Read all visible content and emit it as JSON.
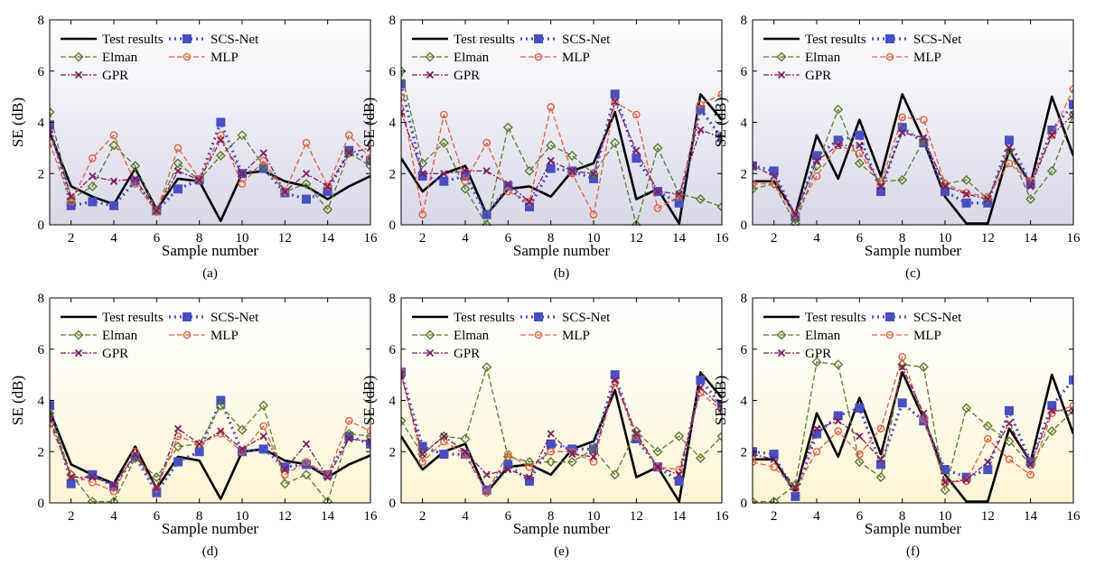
{
  "figure": {
    "xlabel": "Sample number",
    "ylabel": "SE (dB)",
    "legend": [
      "Test results",
      "SCS-Net",
      "Elman",
      "MLP",
      "GPR"
    ],
    "colors": {
      "test": "#000000",
      "scs": "#4a4fc0",
      "elman": "#5a7a2a",
      "mlp": "#e06040",
      "gpr": "#7b1f5e",
      "bg_top_row": "#e6e6f0",
      "bg_bottom_row": "#fdf8e4"
    }
  },
  "chart_data": [
    {
      "type": "line",
      "caption": "(a)",
      "xlabel": "Sample number",
      "ylabel": "SE (dB)",
      "xlim": [
        1,
        16
      ],
      "ylim": [
        0,
        8
      ],
      "xticks": [
        2,
        4,
        6,
        8,
        10,
        12,
        14,
        16
      ],
      "yticks": [
        0,
        2,
        4,
        6,
        8
      ],
      "x": [
        1,
        2,
        3,
        4,
        5,
        6,
        7,
        8,
        9,
        10,
        11,
        12,
        13,
        14,
        15,
        16
      ],
      "legend_position": "top-left",
      "grid": false,
      "background": "gradient-lavender",
      "series": [
        {
          "name": "Test results",
          "key": "test",
          "values": [
            3.6,
            1.5,
            1.1,
            0.8,
            2.2,
            0.6,
            1.8,
            1.7,
            0.15,
            2.0,
            2.1,
            1.7,
            1.5,
            1.0,
            1.5,
            1.9
          ]
        },
        {
          "name": "SCS-Net",
          "key": "scs",
          "values": [
            3.9,
            0.75,
            0.9,
            0.75,
            1.7,
            0.55,
            1.4,
            1.75,
            4.0,
            2.0,
            2.2,
            1.25,
            1.0,
            1.3,
            2.9,
            2.5
          ]
        },
        {
          "name": "Elman",
          "key": "elman",
          "values": [
            4.4,
            1.0,
            1.5,
            3.1,
            2.3,
            0.55,
            2.4,
            1.75,
            2.7,
            3.5,
            2.3,
            1.3,
            1.6,
            0.6,
            2.8,
            2.3
          ]
        },
        {
          "name": "MLP",
          "key": "mlp",
          "values": [
            3.2,
            0.9,
            2.6,
            3.5,
            1.6,
            0.5,
            3.0,
            1.8,
            3.5,
            1.6,
            2.5,
            1.3,
            3.2,
            1.5,
            3.5,
            2.6
          ]
        },
        {
          "name": "GPR",
          "key": "gpr",
          "values": [
            3.7,
            1.1,
            1.9,
            1.7,
            1.8,
            0.55,
            2.1,
            1.75,
            3.3,
            2.0,
            2.8,
            1.3,
            2.0,
            1.5,
            2.8,
            3.0
          ]
        }
      ]
    },
    {
      "type": "line",
      "caption": "(b)",
      "xlabel": "Sample number",
      "ylabel": "SE (dB)",
      "xlim": [
        1,
        16
      ],
      "ylim": [
        0,
        8
      ],
      "xticks": [
        2,
        4,
        6,
        8,
        10,
        12,
        14,
        16
      ],
      "yticks": [
        0,
        2,
        4,
        6,
        8
      ],
      "x": [
        1,
        2,
        3,
        4,
        5,
        6,
        7,
        8,
        9,
        10,
        11,
        12,
        13,
        14,
        15,
        16
      ],
      "legend_position": "top-left",
      "grid": false,
      "background": "gradient-lavender",
      "series": [
        {
          "name": "Test results",
          "key": "test",
          "values": [
            2.6,
            1.3,
            2.0,
            2.3,
            0.4,
            1.4,
            1.5,
            1.1,
            2.1,
            2.4,
            4.4,
            1.0,
            1.4,
            0.05,
            5.1,
            4.1
          ]
        },
        {
          "name": "SCS-Net",
          "key": "scs",
          "values": [
            5.5,
            1.9,
            1.7,
            1.9,
            0.4,
            1.5,
            0.7,
            2.2,
            2.1,
            1.8,
            5.1,
            2.6,
            1.3,
            0.85,
            4.5,
            3.4
          ]
        },
        {
          "name": "Elman",
          "key": "elman",
          "values": [
            6.0,
            2.4,
            3.2,
            1.4,
            0.0,
            3.8,
            2.1,
            3.1,
            2.7,
            2.0,
            3.2,
            0.0,
            3.0,
            1.2,
            1.0,
            0.7
          ]
        },
        {
          "name": "MLP",
          "key": "mlp",
          "values": [
            5.0,
            0.4,
            4.3,
            1.7,
            3.2,
            1.3,
            0.9,
            4.6,
            2.0,
            0.4,
            4.8,
            4.3,
            0.65,
            1.1,
            4.7,
            5.1
          ]
        },
        {
          "name": "GPR",
          "key": "gpr",
          "values": [
            4.4,
            2.0,
            2.0,
            2.1,
            2.1,
            1.6,
            0.9,
            2.5,
            2.1,
            2.0,
            4.8,
            2.9,
            1.3,
            1.2,
            3.7,
            3.4
          ]
        }
      ]
    },
    {
      "type": "line",
      "caption": "(c)",
      "xlabel": "Sample number",
      "ylabel": "SE (dB)",
      "xlim": [
        1,
        16
      ],
      "ylim": [
        0,
        8
      ],
      "xticks": [
        2,
        4,
        6,
        8,
        10,
        12,
        14,
        16
      ],
      "yticks": [
        0,
        2,
        4,
        6,
        8
      ],
      "x": [
        1,
        2,
        3,
        4,
        5,
        6,
        7,
        8,
        9,
        10,
        11,
        12,
        13,
        14,
        15,
        16
      ],
      "legend_position": "top-left",
      "grid": false,
      "background": "gradient-lavender",
      "series": [
        {
          "name": "Test results",
          "key": "test",
          "values": [
            1.7,
            1.7,
            0.4,
            3.5,
            1.8,
            4.1,
            1.9,
            5.1,
            3.3,
            1.1,
            0.05,
            0.05,
            2.9,
            1.6,
            5.0,
            2.7
          ]
        },
        {
          "name": "SCS-Net",
          "key": "scs",
          "values": [
            2.3,
            2.1,
            0.3,
            2.7,
            3.3,
            3.5,
            1.3,
            3.8,
            3.2,
            1.3,
            0.85,
            0.85,
            3.3,
            1.6,
            3.7,
            4.7
          ]
        },
        {
          "name": "Elman",
          "key": "elman",
          "values": [
            1.4,
            1.6,
            0.05,
            2.3,
            4.5,
            2.4,
            1.7,
            1.75,
            3.3,
            1.6,
            1.75,
            1.0,
            2.9,
            1.0,
            2.1,
            4.3
          ]
        },
        {
          "name": "MLP",
          "key": "mlp",
          "values": [
            1.6,
            1.6,
            0.4,
            1.9,
            3.1,
            2.8,
            1.6,
            4.2,
            4.1,
            1.6,
            1.25,
            1.1,
            2.4,
            1.7,
            3.5,
            5.3
          ]
        },
        {
          "name": "GPR",
          "key": "gpr",
          "values": [
            2.3,
            1.9,
            0.4,
            2.5,
            3.1,
            3.1,
            1.5,
            3.6,
            3.4,
            1.5,
            1.2,
            1.0,
            3.0,
            1.5,
            3.5,
            4.3
          ]
        }
      ]
    },
    {
      "type": "line",
      "caption": "(d)",
      "xlabel": "Sample number",
      "ylabel": "SE (dB)",
      "xlim": [
        1,
        16
      ],
      "ylim": [
        0,
        8
      ],
      "xticks": [
        2,
        4,
        6,
        8,
        10,
        12,
        14,
        16
      ],
      "yticks": [
        0,
        2,
        4,
        6,
        8
      ],
      "x": [
        1,
        2,
        3,
        4,
        5,
        6,
        7,
        8,
        9,
        10,
        11,
        12,
        13,
        14,
        15,
        16
      ],
      "legend_position": "top-left",
      "grid": false,
      "background": "gradient-cream",
      "series": [
        {
          "name": "Test results",
          "key": "test",
          "values": [
            3.6,
            1.5,
            1.1,
            0.75,
            2.2,
            0.55,
            1.8,
            1.65,
            0.15,
            2.0,
            2.1,
            1.65,
            1.5,
            1.0,
            1.5,
            1.85
          ]
        },
        {
          "name": "SCS-Net",
          "key": "scs",
          "values": [
            3.8,
            0.75,
            1.1,
            0.65,
            1.8,
            0.4,
            1.6,
            2.0,
            4.0,
            2.0,
            2.1,
            1.4,
            1.5,
            1.1,
            2.6,
            2.3
          ]
        },
        {
          "name": "Elman",
          "key": "elman",
          "values": [
            3.5,
            1.1,
            0.05,
            0.05,
            1.75,
            1.0,
            2.2,
            2.3,
            3.8,
            2.85,
            3.8,
            0.75,
            1.1,
            0.05,
            2.7,
            2.6
          ]
        },
        {
          "name": "MLP",
          "key": "mlp",
          "values": [
            3.1,
            1.1,
            0.8,
            0.45,
            2.0,
            0.55,
            2.6,
            2.3,
            2.7,
            2.0,
            3.0,
            1.1,
            1.6,
            1.1,
            3.2,
            2.8
          ]
        },
        {
          "name": "GPR",
          "key": "gpr",
          "values": [
            3.3,
            1.0,
            1.0,
            0.7,
            1.9,
            0.6,
            2.9,
            2.3,
            2.8,
            2.1,
            2.6,
            1.3,
            2.3,
            1.0,
            2.5,
            2.4
          ]
        }
      ]
    },
    {
      "type": "line",
      "caption": "(e)",
      "xlabel": "Sample number",
      "ylabel": "SE (dB)",
      "xlim": [
        1,
        16
      ],
      "ylim": [
        0,
        8
      ],
      "xticks": [
        2,
        4,
        6,
        8,
        10,
        12,
        14,
        16
      ],
      "yticks": [
        0,
        2,
        4,
        6,
        8
      ],
      "x": [
        1,
        2,
        3,
        4,
        5,
        6,
        7,
        8,
        9,
        10,
        11,
        12,
        13,
        14,
        15,
        16
      ],
      "legend_position": "top-left",
      "grid": false,
      "background": "gradient-cream",
      "series": [
        {
          "name": "Test results",
          "key": "test",
          "values": [
            2.6,
            1.3,
            2.0,
            2.3,
            0.4,
            1.4,
            1.5,
            1.1,
            2.1,
            2.4,
            4.4,
            1.0,
            1.4,
            0.05,
            5.1,
            4.1
          ]
        },
        {
          "name": "SCS-Net",
          "key": "scs",
          "values": [
            5.1,
            2.2,
            1.9,
            1.9,
            0.5,
            1.5,
            0.85,
            2.3,
            2.1,
            2.1,
            5.0,
            2.5,
            1.4,
            0.85,
            4.8,
            3.8
          ]
        },
        {
          "name": "Elman",
          "key": "elman",
          "values": [
            3.2,
            1.9,
            2.6,
            2.5,
            5.3,
            1.8,
            1.6,
            1.6,
            1.6,
            2.1,
            1.1,
            2.8,
            2.0,
            2.6,
            1.75,
            2.6
          ]
        },
        {
          "name": "MLP",
          "key": "mlp",
          "values": [
            5.1,
            1.6,
            2.4,
            1.9,
            0.4,
            1.9,
            1.4,
            2.0,
            2.0,
            1.6,
            4.7,
            2.6,
            1.4,
            1.3,
            4.3,
            3.6
          ]
        },
        {
          "name": "GPR",
          "key": "gpr",
          "values": [
            5.0,
            1.9,
            2.6,
            2.0,
            1.1,
            1.3,
            1.0,
            2.7,
            1.9,
            1.8,
            4.8,
            2.7,
            1.4,
            1.1,
            4.5,
            3.7
          ]
        }
      ]
    },
    {
      "type": "line",
      "caption": "(f)",
      "xlabel": "Sample number",
      "ylabel": "SE (dB)",
      "xlim": [
        1,
        16
      ],
      "ylim": [
        0,
        8
      ],
      "xticks": [
        2,
        4,
        6,
        8,
        10,
        12,
        14,
        16
      ],
      "yticks": [
        0,
        2,
        4,
        6,
        8
      ],
      "x": [
        1,
        2,
        3,
        4,
        5,
        6,
        7,
        8,
        9,
        10,
        11,
        12,
        13,
        14,
        15,
        16
      ],
      "legend_position": "top-left",
      "grid": false,
      "background": "gradient-cream",
      "series": [
        {
          "name": "Test results",
          "key": "test",
          "values": [
            1.7,
            1.7,
            0.4,
            3.5,
            1.8,
            4.1,
            1.9,
            5.1,
            3.3,
            1.1,
            0.05,
            0.05,
            2.9,
            1.6,
            5.0,
            2.7
          ]
        },
        {
          "name": "SCS-Net",
          "key": "scs",
          "values": [
            2.0,
            1.9,
            0.25,
            2.7,
            3.4,
            3.7,
            1.5,
            3.9,
            3.2,
            1.3,
            1.0,
            1.3,
            3.6,
            1.6,
            3.8,
            4.8
          ]
        },
        {
          "name": "Elman",
          "key": "elman",
          "values": [
            0.05,
            0.05,
            0.7,
            5.5,
            5.4,
            1.6,
            1.0,
            5.4,
            5.3,
            0.5,
            3.7,
            3.0,
            2.4,
            1.5,
            2.8,
            3.6
          ]
        },
        {
          "name": "MLP",
          "key": "mlp",
          "values": [
            1.6,
            1.4,
            0.55,
            2.0,
            2.8,
            1.9,
            2.9,
            5.7,
            3.3,
            0.8,
            0.85,
            2.5,
            1.7,
            1.1,
            3.5,
            3.8
          ]
        },
        {
          "name": "GPR",
          "key": "gpr",
          "values": [
            1.9,
            1.7,
            0.6,
            2.9,
            3.2,
            2.6,
            1.7,
            5.3,
            3.5,
            0.8,
            0.9,
            1.6,
            3.1,
            1.5,
            3.6,
            3.6
          ]
        }
      ]
    }
  ]
}
